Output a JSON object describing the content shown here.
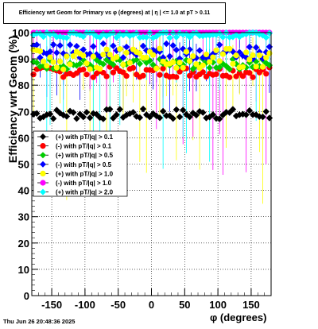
{
  "title": "Efficiency wrt Geom for Primary vs φ (degrees) at |  η  | <= 1.0 at pT > 0.11",
  "date_stamp": "Thu Jun 26 20:48:36 2025",
  "chart_data": {
    "type": "scatter",
    "title": "Efficiency wrt Geom for Primary vs φ (degrees) at |  η  | <= 1.0 at pT > 0.11",
    "xlabel": "φ (degrees)",
    "ylabel": "Efficiency wrt Geom (%)",
    "xlim": [
      -180,
      180
    ],
    "ylim": [
      0,
      100
    ],
    "x_ticks": [
      -150,
      -100,
      -50,
      0,
      50,
      100,
      150
    ],
    "y_ticks": [
      0,
      10,
      20,
      30,
      40,
      50,
      60,
      70,
      80,
      90,
      100
    ],
    "grid": true,
    "legend_position": "middle-left",
    "series": [
      {
        "name": "(+) with pT/|q| > 0.1",
        "color": "#000000",
        "marker": "diamond",
        "mean": 69,
        "spread": 2
      },
      {
        "name": "(-) with pT/|q| > 0.1",
        "color": "#ff0000",
        "marker": "circle",
        "mean": 85,
        "spread": 2
      },
      {
        "name": "(+) with pT/|q| > 0.5",
        "color": "#00cc00",
        "marker": "diamond",
        "mean": 88,
        "spread": 2
      },
      {
        "name": "(-) with pT/|q| > 0.5",
        "color": "#0000ff",
        "marker": "diamond",
        "mean": 93,
        "spread": 3
      },
      {
        "name": "(+) with pT/|q| > 1.0",
        "color": "#ffff00",
        "marker": "circle",
        "mean": 90,
        "spread": 4
      },
      {
        "name": "(-) with pT/|q| > 1.0",
        "color": "#ff00ff",
        "marker": "circle",
        "mean": 100,
        "spread": 0
      },
      {
        "name": "(+) with pT/|q| > 2.0",
        "color": "#00ffff",
        "marker": "diamond",
        "mean": 99,
        "spread": 1
      }
    ]
  }
}
